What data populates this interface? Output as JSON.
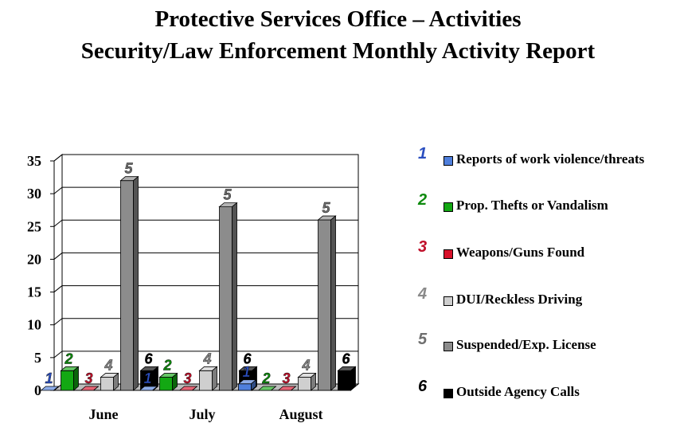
{
  "title_line1": "Protective Services Office – Activities",
  "title_line2": "Security/Law Enforcement Monthly Activity Report",
  "chart_data": {
    "type": "bar",
    "categories": [
      "June",
      "July",
      "August"
    ],
    "ylim": [
      0,
      35
    ],
    "yticks": [
      "0",
      "5",
      "10",
      "15",
      "20",
      "25",
      "30",
      "35"
    ],
    "grid": true,
    "legend_position": "right",
    "series": [
      {
        "id": "1",
        "name": "Reports of work violence/threats",
        "color": "#4f7fdc",
        "values": [
          0,
          0,
          1
        ]
      },
      {
        "id": "2",
        "name": "Prop. Thefts or Vandalism",
        "color": "#13a813",
        "values": [
          3,
          2,
          0
        ]
      },
      {
        "id": "3",
        "name": "Weapons/Guns Found",
        "color": "#d8102a",
        "values": [
          0,
          0,
          0
        ]
      },
      {
        "id": "4",
        "name": "DUI/Reckless Driving",
        "color": "#cfcfcf",
        "values": [
          2,
          3,
          2
        ]
      },
      {
        "id": "5",
        "name": "Suspended/Exp. License",
        "color": "#8c8c8c",
        "values": [
          32,
          28,
          26
        ]
      },
      {
        "id": "6",
        "name": "Outside Agency Calls",
        "color": "#000000",
        "values": [
          3,
          3,
          3
        ]
      }
    ]
  }
}
